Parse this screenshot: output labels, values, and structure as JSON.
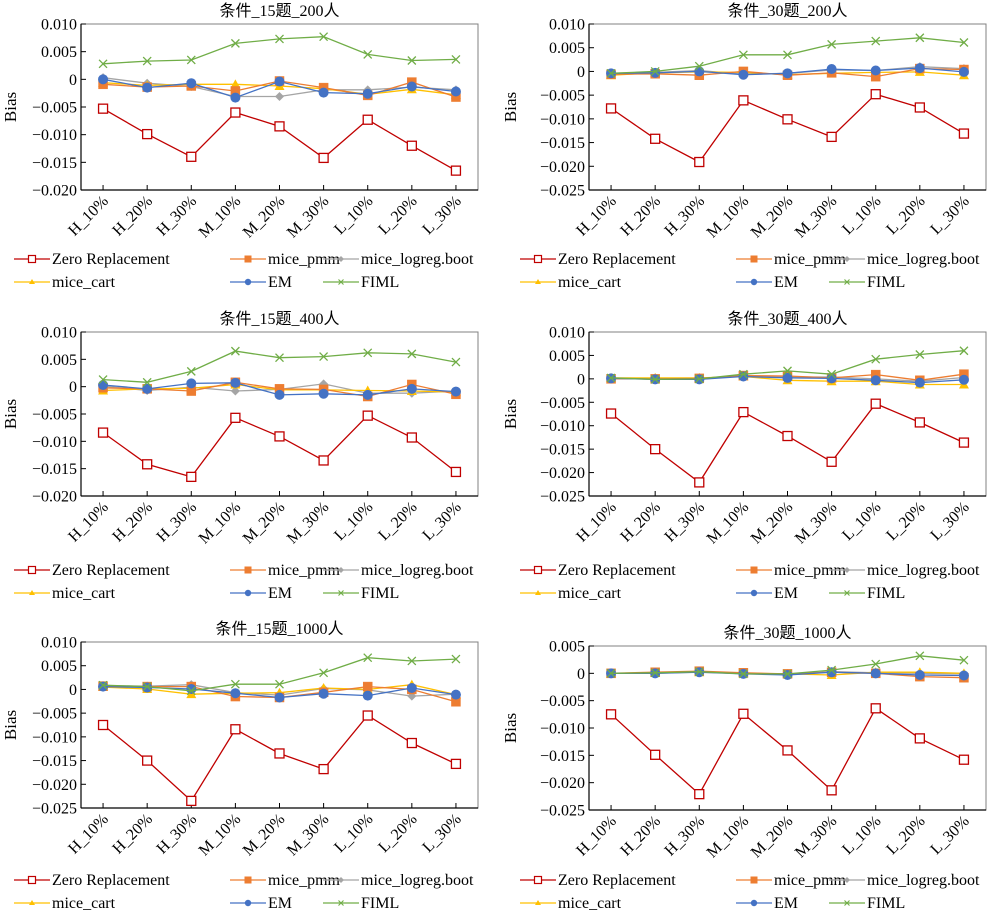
{
  "figure": {
    "legend_entries": [
      {
        "key": "zero",
        "label": "Zero Replacement",
        "color": "#C00000",
        "marker": "square-open"
      },
      {
        "key": "pmm",
        "label": "mice_pmm",
        "color": "#ED7D31",
        "marker": "square"
      },
      {
        "key": "logreg",
        "label": "mice_logreg.boot",
        "color": "#A5A5A5",
        "marker": "diamond"
      },
      {
        "key": "cart",
        "label": "mice_cart",
        "color": "#FFC000",
        "marker": "triangle"
      },
      {
        "key": "em",
        "label": "EM",
        "color": "#4472C4",
        "marker": "circle"
      },
      {
        "key": "fiml",
        "label": "FIML",
        "color": "#70AD47",
        "marker": "x"
      }
    ]
  },
  "chart_data": [
    {
      "type": "line",
      "title": "条件_15题_200人",
      "xlabel": "",
      "ylabel": "Bias",
      "categories": [
        "H_10%",
        "H_20%",
        "H_30%",
        "M_10%",
        "M_20%",
        "M_30%",
        "L_10%",
        "L_20%",
        "L_30%"
      ],
      "ylim": [
        -0.02,
        0.01
      ],
      "yticks": [
        0.01,
        0.005,
        0,
        -0.005,
        -0.01,
        -0.015,
        -0.02
      ],
      "ytick_labels": [
        "0.010",
        "0.005",
        "0",
        "−0.005",
        "−0.010",
        "−0.015",
        "−0.020"
      ],
      "grid": false,
      "legend": "bottom",
      "series": [
        {
          "key": "zero",
          "name": "Zero Replacement",
          "values": [
            -0.0053,
            -0.0099,
            -0.014,
            -0.006,
            -0.0085,
            -0.0142,
            -0.0073,
            -0.012,
            -0.0165
          ]
        },
        {
          "key": "pmm",
          "name": "mice_pmm",
          "values": [
            -0.0009,
            -0.0014,
            -0.0012,
            -0.0021,
            -0.0003,
            -0.0015,
            -0.0029,
            -0.0005,
            -0.0032
          ]
        },
        {
          "key": "logreg",
          "name": "mice_logreg.boot",
          "values": [
            0.0003,
            -0.0007,
            -0.0013,
            -0.0031,
            -0.0031,
            -0.0019,
            -0.0019,
            -0.0014,
            -0.0019
          ]
        },
        {
          "key": "cart",
          "name": "mice_cart",
          "values": [
            -0.0006,
            -0.0011,
            -0.0009,
            -0.0009,
            -0.0012,
            -0.0017,
            -0.0027,
            -0.0018,
            -0.0028
          ]
        },
        {
          "key": "em",
          "name": "EM",
          "values": [
            0.0,
            -0.0015,
            -0.0007,
            -0.0033,
            -0.0004,
            -0.0024,
            -0.0026,
            -0.0013,
            -0.0022
          ]
        },
        {
          "key": "fiml",
          "name": "FIML",
          "values": [
            0.0028,
            0.0033,
            0.0035,
            0.0065,
            0.0073,
            0.0077,
            0.0045,
            0.0034,
            0.0036
          ]
        }
      ]
    },
    {
      "type": "line",
      "title": "条件_30题_200人",
      "xlabel": "",
      "ylabel": "Bias",
      "categories": [
        "H_10%",
        "H_20%",
        "H_30%",
        "M_10%",
        "M_20%",
        "M_30%",
        "L_10%",
        "L_20%",
        "L_30%"
      ],
      "ylim": [
        -0.025,
        0.01
      ],
      "yticks": [
        0.01,
        0.005,
        0,
        -0.005,
        -0.01,
        -0.015,
        -0.02,
        -0.025
      ],
      "ytick_labels": [
        "0.010",
        "0.005",
        "0",
        "−0.005",
        "−0.010",
        "−0.015",
        "−0.020",
        "−0.025"
      ],
      "grid": false,
      "legend": "bottom",
      "series": [
        {
          "key": "zero",
          "name": "Zero Replacement",
          "values": [
            -0.0078,
            -0.0142,
            -0.0191,
            -0.0061,
            -0.0101,
            -0.0138,
            -0.0048,
            -0.0076,
            -0.0131
          ]
        },
        {
          "key": "pmm",
          "name": "mice_pmm",
          "values": [
            -0.0006,
            -0.0005,
            -0.0008,
            0.0,
            -0.0008,
            -0.0003,
            -0.0011,
            0.0006,
            0.0004
          ]
        },
        {
          "key": "logreg",
          "name": "mice_logreg.boot",
          "values": [
            -0.0004,
            -0.0002,
            0.0002,
            -0.0006,
            -0.0004,
            0.0003,
            0.0002,
            0.001,
            0.0006
          ]
        },
        {
          "key": "cart",
          "name": "mice_cart",
          "values": [
            -0.0008,
            -0.0003,
            -0.0001,
            -0.0002,
            -0.0007,
            -0.0004,
            -0.0002,
            -0.0001,
            -0.0008
          ]
        },
        {
          "key": "em",
          "name": "EM",
          "values": [
            -0.0004,
            -0.0003,
            0.0,
            -0.0007,
            -0.0004,
            0.0005,
            0.0002,
            0.0007,
            -0.0001
          ]
        },
        {
          "key": "fiml",
          "name": "FIML",
          "values": [
            -0.0004,
            0.0,
            0.0011,
            0.0035,
            0.0035,
            0.0057,
            0.0064,
            0.0071,
            0.0061
          ]
        }
      ]
    },
    {
      "type": "line",
      "title": "条件_15题_400人",
      "xlabel": "",
      "ylabel": "Bias",
      "categories": [
        "H_10%",
        "H_20%",
        "H_30%",
        "M_10%",
        "M_20%",
        "M_30%",
        "L_10%",
        "L_20%",
        "L_30%"
      ],
      "ylim": [
        -0.02,
        0.01
      ],
      "yticks": [
        0.01,
        0.005,
        0,
        -0.005,
        -0.01,
        -0.015,
        -0.02
      ],
      "ytick_labels": [
        "0.010",
        "0.005",
        "0",
        "−0.005",
        "−0.010",
        "−0.015",
        "−0.020"
      ],
      "grid": false,
      "legend": "bottom",
      "series": [
        {
          "key": "zero",
          "name": "Zero Replacement",
          "values": [
            -0.0084,
            -0.0142,
            -0.0165,
            -0.0057,
            -0.0091,
            -0.0135,
            -0.0053,
            -0.0093,
            -0.0156
          ]
        },
        {
          "key": "pmm",
          "name": "mice_pmm",
          "values": [
            -0.0002,
            -0.0004,
            -0.0008,
            0.0008,
            -0.0004,
            -0.0005,
            -0.0018,
            0.0004,
            -0.0014
          ]
        },
        {
          "key": "logreg",
          "name": "mice_logreg.boot",
          "values": [
            0.0001,
            -0.0007,
            -0.0001,
            -0.0008,
            -0.0005,
            0.0005,
            -0.0012,
            -0.0012,
            -0.0008
          ]
        },
        {
          "key": "cart",
          "name": "mice_cart",
          "values": [
            -0.0007,
            -0.0004,
            -0.0003,
            0.0004,
            -0.0006,
            -0.0006,
            -0.0007,
            -0.0008,
            -0.001
          ]
        },
        {
          "key": "em",
          "name": "EM",
          "values": [
            0.0003,
            -0.0004,
            0.0006,
            0.0007,
            -0.0015,
            -0.0013,
            -0.0015,
            -0.0004,
            -0.0009
          ]
        },
        {
          "key": "fiml",
          "name": "FIML",
          "values": [
            0.0013,
            0.0008,
            0.0028,
            0.0065,
            0.0053,
            0.0055,
            0.0062,
            0.006,
            0.0045
          ]
        }
      ]
    },
    {
      "type": "line",
      "title": "条件_30题_400人",
      "xlabel": "",
      "ylabel": "Bias",
      "categories": [
        "H_10%",
        "H_20%",
        "H_30%",
        "M_10%",
        "M_20%",
        "M_30%",
        "L_10%",
        "L_20%",
        "L_30%"
      ],
      "ylim": [
        -0.025,
        0.01
      ],
      "yticks": [
        0.01,
        0.005,
        0,
        -0.005,
        -0.01,
        -0.015,
        -0.02,
        -0.025
      ],
      "ytick_labels": [
        "0.010",
        "0.005",
        "0",
        "−0.005",
        "−0.010",
        "−0.015",
        "−0.020",
        "−0.025"
      ],
      "grid": false,
      "legend": "bottom",
      "series": [
        {
          "key": "zero",
          "name": "Zero Replacement",
          "values": [
            -0.0074,
            -0.015,
            -0.0221,
            -0.0071,
            -0.0122,
            -0.0177,
            -0.0053,
            -0.0093,
            -0.0136
          ]
        },
        {
          "key": "pmm",
          "name": "mice_pmm",
          "values": [
            0.0,
            0.0,
            0.0001,
            0.0007,
            0.0006,
            0.0002,
            0.0009,
            -0.0003,
            0.001
          ]
        },
        {
          "key": "logreg",
          "name": "mice_logreg.boot",
          "values": [
            0.0001,
            -0.0001,
            -0.0001,
            0.0007,
            0.0004,
            0.0004,
            0.0,
            -0.0005,
            0.0003
          ]
        },
        {
          "key": "cart",
          "name": "mice_cart",
          "values": [
            0.0002,
            0.0002,
            0.0002,
            0.0005,
            -0.0003,
            -0.0005,
            -0.0005,
            -0.0012,
            -0.0012
          ]
        },
        {
          "key": "em",
          "name": "EM",
          "values": [
            0.0001,
            -0.0001,
            -0.0001,
            0.0005,
            0.0002,
            0.0001,
            -0.0003,
            -0.0008,
            -0.0002
          ]
        },
        {
          "key": "fiml",
          "name": "FIML",
          "values": [
            0.0002,
            -0.0001,
            0.0,
            0.001,
            0.0017,
            0.001,
            0.0042,
            0.0052,
            0.006
          ]
        }
      ]
    },
    {
      "type": "line",
      "title": "条件_15题_1000人",
      "xlabel": "",
      "ylabel": "Bias",
      "categories": [
        "H_10%",
        "H_20%",
        "H_30%",
        "M_10%",
        "M_20%",
        "M_30%",
        "L_10%",
        "L_20%",
        "L_30%"
      ],
      "ylim": [
        -0.025,
        0.01
      ],
      "yticks": [
        0.01,
        0.005,
        0,
        -0.005,
        -0.01,
        -0.015,
        -0.02,
        -0.025
      ],
      "ytick_labels": [
        "0.010",
        "0.005",
        "0",
        "−0.005",
        "−0.010",
        "−0.015",
        "−0.020",
        "−0.025"
      ],
      "grid": false,
      "legend": "bottom",
      "series": [
        {
          "key": "zero",
          "name": "Zero Replacement",
          "values": [
            -0.0075,
            -0.015,
            -0.0235,
            -0.0084,
            -0.0135,
            -0.0168,
            -0.0055,
            -0.0113,
            -0.0157
          ]
        },
        {
          "key": "pmm",
          "name": "mice_pmm",
          "values": [
            0.0007,
            0.0006,
            0.0006,
            -0.0015,
            -0.0017,
            -0.0006,
            0.0006,
            0.0,
            -0.0026
          ]
        },
        {
          "key": "logreg",
          "name": "mice_logreg.boot",
          "values": [
            0.0008,
            0.0007,
            0.001,
            -0.0007,
            -0.0012,
            0.0002,
            -0.0001,
            -0.0014,
            -0.001
          ]
        },
        {
          "key": "cart",
          "name": "mice_cart",
          "values": [
            0.0005,
            0.0001,
            -0.001,
            -0.0008,
            -0.0007,
            0.0003,
            0.0,
            0.001,
            -0.0011
          ]
        },
        {
          "key": "em",
          "name": "EM",
          "values": [
            0.0006,
            0.0004,
            0.0001,
            -0.0008,
            -0.0017,
            -0.0009,
            -0.0013,
            0.0003,
            -0.0011
          ]
        },
        {
          "key": "fiml",
          "name": "FIML",
          "values": [
            0.0009,
            0.0006,
            -0.0003,
            0.0011,
            0.0011,
            0.0035,
            0.0067,
            0.006,
            0.0064
          ]
        }
      ]
    },
    {
      "type": "line",
      "title": "条件_30题_1000人",
      "xlabel": "",
      "ylabel": "Bias",
      "categories": [
        "H_10%",
        "H_20%",
        "H_30%",
        "M_10%",
        "M_20%",
        "M_30%",
        "L_10%",
        "L_20%",
        "L_30%"
      ],
      "ylim": [
        -0.025,
        0.005
      ],
      "yticks": [
        0.005,
        0,
        -0.005,
        -0.01,
        -0.015,
        -0.02,
        -0.025
      ],
      "ytick_labels": [
        "0.005",
        "0",
        "−0.005",
        "−0.010",
        "−0.015",
        "−0.020",
        "−0.025"
      ],
      "grid": false,
      "legend": "bottom",
      "series": [
        {
          "key": "zero",
          "name": "Zero Replacement",
          "values": [
            -0.0075,
            -0.0149,
            -0.0221,
            -0.0074,
            -0.0141,
            -0.0214,
            -0.0064,
            -0.0119,
            -0.0158
          ]
        },
        {
          "key": "pmm",
          "name": "mice_pmm",
          "values": [
            0.0,
            0.0002,
            0.0004,
            0.0001,
            -0.0001,
            0.0002,
            0.0,
            -0.0006,
            -0.0008
          ]
        },
        {
          "key": "logreg",
          "name": "mice_logreg.boot",
          "values": [
            0.0,
            0.0,
            0.0003,
            0.0,
            -0.0002,
            0.0003,
            0.0001,
            0.0,
            -0.0001
          ]
        },
        {
          "key": "cart",
          "name": "mice_cart",
          "values": [
            0.0,
            0.0001,
            0.0002,
            0.0,
            -0.0001,
            -0.0003,
            0.0002,
            0.0002,
            0.0
          ]
        },
        {
          "key": "em",
          "name": "EM",
          "values": [
            0.0,
            0.0,
            0.0002,
            -0.0001,
            -0.0003,
            0.0002,
            0.0,
            -0.0003,
            -0.0004
          ]
        },
        {
          "key": "fiml",
          "name": "FIML",
          "values": [
            0.0,
            0.0001,
            0.0003,
            -0.0001,
            -0.0001,
            0.0006,
            0.0017,
            0.0032,
            0.0024
          ]
        }
      ]
    }
  ]
}
